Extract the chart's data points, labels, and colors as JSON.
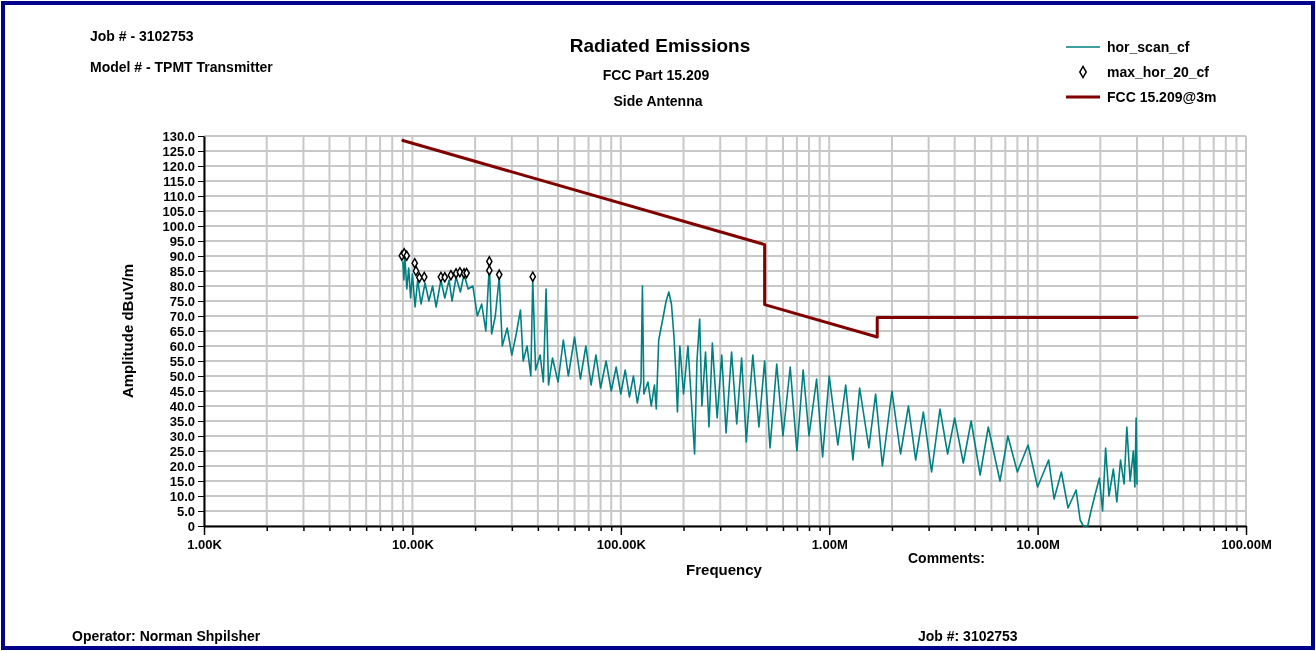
{
  "chart_data": {
    "type": "line",
    "title": "Radiated Emissions",
    "subtitle": "FCC Part 15.209",
    "xlabel": "Frequency",
    "ylabel": "Amplitude dBuV/m",
    "annotations": [
      "Side Antenna",
      "Job # - 3102753",
      "Model # - TPMT Transmitter",
      "Comments:",
      "Operator: Norman Shpilsher",
      "Job #: 3102753"
    ],
    "log": "x",
    "grid": true,
    "legend": "top right",
    "xlim": [
      1000,
      100000000
    ],
    "xticks": [
      {
        "value": 1000,
        "label": "1.00K"
      },
      {
        "value": 2000,
        "label": null
      },
      {
        "value": 3000,
        "label": null
      },
      {
        "value": 4000,
        "label": null
      },
      {
        "value": 5000,
        "label": null
      },
      {
        "value": 6000,
        "label": null
      },
      {
        "value": 7000,
        "label": null
      },
      {
        "value": 8000,
        "label": null
      },
      {
        "value": 9000,
        "label": null
      },
      {
        "value": 10000,
        "label": "10.00K"
      },
      {
        "value": 20000,
        "label": null
      },
      {
        "value": 30000,
        "label": null
      },
      {
        "value": 40000,
        "label": null
      },
      {
        "value": 50000,
        "label": null
      },
      {
        "value": 60000,
        "label": null
      },
      {
        "value": 70000,
        "label": null
      },
      {
        "value": 80000,
        "label": null
      },
      {
        "value": 90000,
        "label": null
      },
      {
        "value": 100000,
        "label": "100.00K"
      },
      {
        "value": 200000,
        "label": null
      },
      {
        "value": 300000,
        "label": null
      },
      {
        "value": 400000,
        "label": null
      },
      {
        "value": 500000,
        "label": null
      },
      {
        "value": 600000,
        "label": null
      },
      {
        "value": 700000,
        "label": null
      },
      {
        "value": 800000,
        "label": null
      },
      {
        "value": 900000,
        "label": null
      },
      {
        "value": 1000000,
        "label": "1.00M"
      },
      {
        "value": 2000000,
        "label": null
      },
      {
        "value": 3000000,
        "label": null
      },
      {
        "value": 4000000,
        "label": null
      },
      {
        "value": 5000000,
        "label": null
      },
      {
        "value": 6000000,
        "label": null
      },
      {
        "value": 7000000,
        "label": null
      },
      {
        "value": 8000000,
        "label": null
      },
      {
        "value": 9000000,
        "label": null
      },
      {
        "value": 10000000,
        "label": "10.00M"
      },
      {
        "value": 20000000,
        "label": null
      },
      {
        "value": 30000000,
        "label": null
      },
      {
        "value": 40000000,
        "label": null
      },
      {
        "value": 50000000,
        "label": null
      },
      {
        "value": 60000000,
        "label": null
      },
      {
        "value": 70000000,
        "label": null
      },
      {
        "value": 80000000,
        "label": null
      },
      {
        "value": 90000000,
        "label": null
      },
      {
        "value": 100000000,
        "label": "100.00M"
      }
    ],
    "ylim": [
      0,
      130
    ],
    "yticks": [
      {
        "value": 0,
        "label": "0"
      },
      {
        "value": 5,
        "label": "5.0"
      },
      {
        "value": 10,
        "label": "10.0"
      },
      {
        "value": 15,
        "label": "15.0"
      },
      {
        "value": 20,
        "label": "20.0"
      },
      {
        "value": 25,
        "label": "25.0"
      },
      {
        "value": 30,
        "label": "30.0"
      },
      {
        "value": 35,
        "label": "35.0"
      },
      {
        "value": 40,
        "label": "40.0"
      },
      {
        "value": 45,
        "label": "45.0"
      },
      {
        "value": 50,
        "label": "50.0"
      },
      {
        "value": 55,
        "label": "55.0"
      },
      {
        "value": 60,
        "label": "60.0"
      },
      {
        "value": 65,
        "label": "65.0"
      },
      {
        "value": 70,
        "label": "70.0"
      },
      {
        "value": 75,
        "label": "75.0"
      },
      {
        "value": 80,
        "label": "80.0"
      },
      {
        "value": 85,
        "label": "85.0"
      },
      {
        "value": 90,
        "label": "90.0"
      },
      {
        "value": 95,
        "label": "95.0"
      },
      {
        "value": 100,
        "label": "100.0"
      },
      {
        "value": 105,
        "label": "105.0"
      },
      {
        "value": 110,
        "label": "110.0"
      },
      {
        "value": 115,
        "label": "115.0"
      },
      {
        "value": 120,
        "label": "120.0"
      },
      {
        "value": 125,
        "label": "125.0"
      },
      {
        "value": 130,
        "label": "130.0"
      }
    ],
    "series": [
      {
        "name": "hor_scan_cf",
        "type": "line",
        "marker": "none",
        "color": "#008080",
        "x": [
          9000,
          9100,
          9200,
          9400,
          9600,
          9800,
          10000,
          10300,
          10600,
          11000,
          11500,
          12000,
          12500,
          13000,
          13700,
          14300,
          15000,
          15500,
          16200,
          17000,
          17700,
          18500,
          19500,
          20500,
          21500,
          22500,
          23400,
          24000,
          25000,
          26100,
          27000,
          28500,
          30000,
          31500,
          33000,
          34000,
          35500,
          37000,
          37800,
          39000,
          41000,
          42500,
          43800,
          45000,
          47000,
          50000,
          53000,
          56000,
          60000,
          64000,
          68000,
          72000,
          76000,
          80000,
          85000,
          90000,
          95000,
          100000,
          105000,
          110000,
          115000,
          120000,
          125000,
          127000,
          129000,
          135000,
          140000,
          145000,
          148000,
          152000,
          158000,
          165000,
          170000,
          175000,
          180000,
          184000,
          187000,
          192000,
          200000,
          210000,
          218000,
          226000,
          232000,
          239000,
          245000,
          255000,
          265000,
          275000,
          290000,
          305000,
          320000,
          340000,
          360000,
          380000,
          400000,
          430000,
          460000,
          490000,
          520000,
          560000,
          600000,
          650000,
          700000,
          750000,
          800000,
          870000,
          930000,
          1000000,
          1100000,
          1200000,
          1300000,
          1400000,
          1550000,
          1670000,
          1800000,
          2000000,
          2200000,
          2400000,
          2600000,
          2830000,
          3100000,
          3400000,
          3700000,
          4000000,
          4400000,
          4800000,
          5300000,
          5800000,
          6600000,
          7200000,
          8000000,
          9000000,
          10000000,
          11300000,
          12000000,
          13000000,
          14000000,
          15300000,
          16000000,
          16600000,
          17400000,
          17900000,
          18800000,
          19800000,
          20500000,
          21200000,
          22000000,
          23100000,
          24000000,
          25000000,
          26000000,
          26800000,
          27800000,
          28800000,
          29300000,
          29700000,
          30000000
        ],
        "values": [
          88,
          82,
          90,
          79,
          86,
          76,
          84,
          73,
          82,
          74,
          81,
          75,
          80,
          73,
          82,
          76,
          82,
          75,
          83,
          78,
          84,
          79,
          80,
          70,
          74,
          65,
          87,
          64,
          70,
          83,
          60,
          66,
          57,
          64,
          72,
          55,
          60,
          50,
          82,
          52,
          57,
          48,
          79,
          47,
          56,
          48,
          62,
          50,
          63,
          49,
          60,
          47,
          57,
          46,
          55,
          45,
          53,
          44,
          52,
          43,
          50,
          41,
          48,
          80,
          44,
          48,
          40,
          47,
          39,
          62,
          68,
          75,
          78,
          74,
          63,
          50,
          38,
          60,
          44,
          60,
          42,
          24,
          55,
          69,
          40,
          58,
          33,
          61,
          36,
          57,
          31,
          58,
          34,
          56,
          28,
          57,
          33,
          55,
          26,
          54,
          30,
          53,
          25,
          52,
          30,
          49,
          23,
          50,
          27,
          47,
          22,
          46,
          26,
          44,
          20,
          45,
          24,
          40,
          22,
          38,
          18,
          39,
          24,
          36,
          21,
          35,
          17,
          33,
          15,
          30,
          18,
          27,
          13,
          22,
          9,
          18,
          6,
          12,
          2,
          0,
          0,
          4,
          10,
          16,
          5,
          26,
          10,
          19,
          8,
          22,
          14,
          33,
          15,
          25,
          13,
          36,
          14
        ]
      },
      {
        "name": "max_hor_20_cf",
        "type": "scatter",
        "marker": "diamond",
        "color": "#000000",
        "x": [
          8900,
          9130,
          9390,
          10260,
          10400,
          10800,
          11400,
          13700,
          14300,
          15300,
          16200,
          16900,
          17700,
          18200,
          23400,
          23400,
          26100,
          37800
        ],
        "values": [
          90.1,
          90.9,
          90.1,
          87.6,
          85.0,
          82.8,
          83.0,
          83.0,
          82.9,
          83.6,
          84.2,
          84.6,
          84.2,
          84.3,
          88.2,
          85.2,
          83.8,
          83.1
        ]
      },
      {
        "name": "FCC 15.209@3m",
        "type": "line",
        "marker": "none",
        "color": "#800000",
        "x": [
          9000,
          490000,
          490000,
          1700000,
          1700000,
          30000000
        ],
        "values": [
          128.5,
          93.8,
          73.8,
          63.0,
          69.5,
          69.5
        ]
      }
    ]
  }
}
